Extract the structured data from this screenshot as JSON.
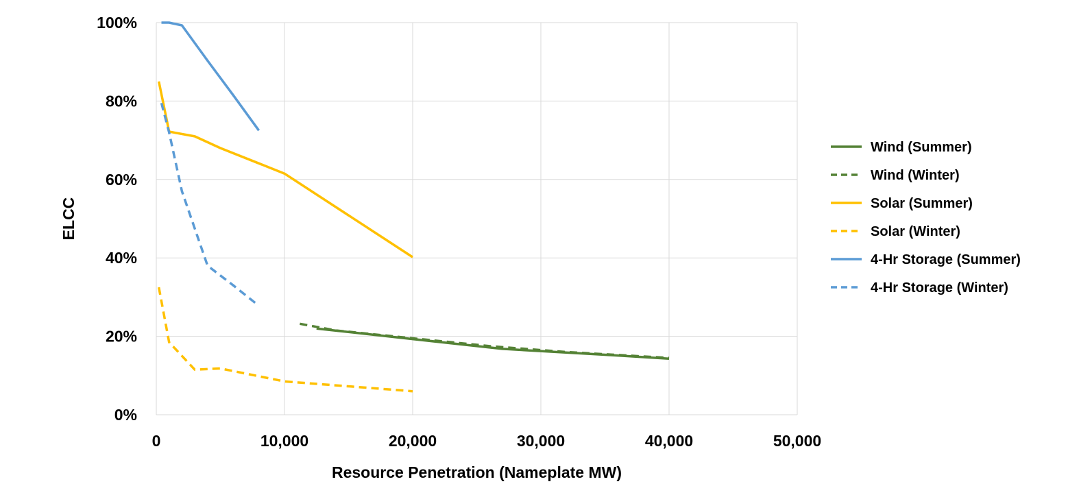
{
  "chart_data": {
    "type": "line",
    "title": "",
    "xlabel": "Resource Penetration (Nameplate MW)",
    "ylabel": "ELCC",
    "xlim": [
      0,
      50000
    ],
    "ylim": [
      0,
      100
    ],
    "x_ticks": [
      0,
      10000,
      20000,
      30000,
      40000,
      50000
    ],
    "x_tick_labels": [
      "0",
      "10,000",
      "20,000",
      "30,000",
      "40,000",
      "50,000"
    ],
    "y_ticks": [
      0,
      20,
      40,
      60,
      80,
      100
    ],
    "y_tick_labels": [
      "0%",
      "20%",
      "40%",
      "60%",
      "80%",
      "100%"
    ],
    "grid": true,
    "legend_position": "right",
    "series": [
      {
        "name": "Wind (Summer)",
        "color": "#548235",
        "dash": "solid",
        "x": [
          12500,
          20000,
          27000,
          35000,
          40000
        ],
        "y": [
          22,
          19.3,
          16.8,
          15.3,
          14.3
        ]
      },
      {
        "name": "Wind (Winter)",
        "color": "#548235",
        "dash": "dashed",
        "x": [
          11200,
          14000,
          20000,
          26000,
          32000,
          40000
        ],
        "y": [
          23.2,
          21.5,
          19.5,
          17.5,
          16,
          14.5
        ]
      },
      {
        "name": "Solar (Summer)",
        "color": "#FFC000",
        "dash": "solid",
        "x": [
          200,
          1000,
          3000,
          5000,
          10000,
          20000
        ],
        "y": [
          85,
          72.2,
          71,
          68,
          61.5,
          40.2
        ]
      },
      {
        "name": "Solar (Winter)",
        "color": "#FFC000",
        "dash": "dashed",
        "x": [
          200,
          1000,
          3000,
          5000,
          10000,
          20000
        ],
        "y": [
          32.5,
          18.5,
          11.5,
          11.8,
          8.5,
          6
        ]
      },
      {
        "name": "4-Hr Storage (Summer)",
        "color": "#5B9BD5",
        "dash": "solid",
        "x": [
          400,
          1000,
          2000,
          4000,
          6000,
          8000
        ],
        "y": [
          100,
          100,
          99.3,
          90.3,
          81.5,
          72.5
        ]
      },
      {
        "name": "4-Hr Storage (Winter)",
        "color": "#5B9BD5",
        "dash": "dashed",
        "x": [
          400,
          1000,
          2000,
          4000,
          6000,
          8000
        ],
        "y": [
          79.5,
          72,
          57,
          38,
          33,
          27.8
        ]
      }
    ]
  }
}
